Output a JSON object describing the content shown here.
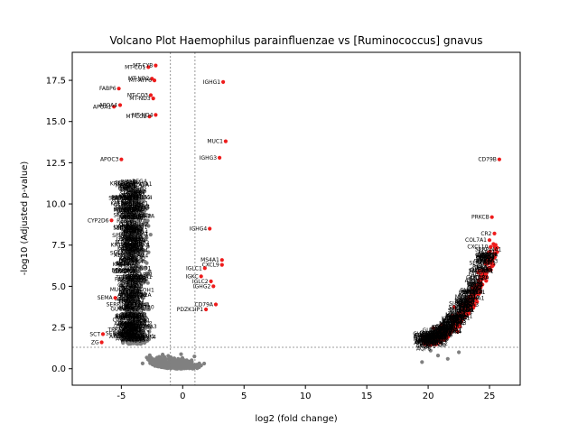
{
  "chart_data": {
    "type": "scatter",
    "title": "Volcano Plot Haemophilus parainfluenzae vs [Ruminococcus] gnavus",
    "xlabel": "log2 (fold change)",
    "ylabel": "-log10 (Adjusted p-value)",
    "xlim": [
      -9,
      27.5
    ],
    "ylim": [
      -1.0,
      19.2
    ],
    "xticks": [
      -5,
      0,
      5,
      10,
      15,
      20,
      25
    ],
    "yticks": [
      0.0,
      2.5,
      5.0,
      7.5,
      10.0,
      12.5,
      15.0,
      17.5
    ],
    "ytick_labels": [
      "0.0",
      "2.5",
      "5.0",
      "7.5",
      "10.0",
      "12.5",
      "15.0",
      "17.5"
    ],
    "thresholds": {
      "fold_change": [
        -1,
        1
      ],
      "p_value": 1.3
    },
    "colors": {
      "significant": "#ee1c1c",
      "not_significant": "#808080",
      "threshold_line": "#7f7f7f"
    },
    "labeled_points": [
      {
        "label": "MT-CO1",
        "x": -2.8,
        "y": 18.3
      },
      {
        "label": "MT-CYB",
        "x": -2.2,
        "y": 18.4
      },
      {
        "label": "MT-ND2",
        "x": -2.5,
        "y": 17.6
      },
      {
        "label": "MT-ATP6",
        "x": -2.3,
        "y": 17.5
      },
      {
        "label": "FABP6",
        "x": -5.2,
        "y": 17.0
      },
      {
        "label": "MT-CO3",
        "x": -2.6,
        "y": 16.6
      },
      {
        "label": "MT-ND3",
        "x": -2.4,
        "y": 16.4
      },
      {
        "label": "APOA1",
        "x": -5.6,
        "y": 15.9
      },
      {
        "label": "APOA4",
        "x": -5.1,
        "y": 16.0
      },
      {
        "label": "MT-CO2",
        "x": -2.7,
        "y": 15.3
      },
      {
        "label": "MT-ND4",
        "x": -2.2,
        "y": 15.4
      },
      {
        "label": "IGHG1",
        "x": 3.3,
        "y": 17.4
      },
      {
        "label": "MUC1",
        "x": 3.5,
        "y": 13.8
      },
      {
        "label": "IGHG3",
        "x": 3.0,
        "y": 12.8
      },
      {
        "label": "CD79B",
        "x": 25.8,
        "y": 12.7
      },
      {
        "label": "APOC3",
        "x": -5.0,
        "y": 12.7
      },
      {
        "label": "IGHG4",
        "x": 2.2,
        "y": 8.5
      },
      {
        "label": "CYP2D6",
        "x": -5.8,
        "y": 9.0
      },
      {
        "label": "PRKCB",
        "x": 25.2,
        "y": 9.2
      },
      {
        "label": "CR2",
        "x": 25.4,
        "y": 8.2
      },
      {
        "label": "COL7A1",
        "x": 25.0,
        "y": 7.8
      },
      {
        "label": "CXCL10",
        "x": 25.1,
        "y": 7.4
      },
      {
        "label": "MS4A1",
        "x": 3.2,
        "y": 6.6
      },
      {
        "label": "CXCL9",
        "x": 3.2,
        "y": 6.3
      },
      {
        "label": "IGLC1",
        "x": 1.8,
        "y": 6.1
      },
      {
        "label": "IGKC",
        "x": 1.5,
        "y": 5.6
      },
      {
        "label": "IGLC2",
        "x": 2.3,
        "y": 5.3
      },
      {
        "label": "IGHG2",
        "x": 2.5,
        "y": 5.0
      },
      {
        "label": "CD79A",
        "x": 2.7,
        "y": 3.9
      },
      {
        "label": "PDZK1IP1",
        "x": 1.9,
        "y": 3.6
      },
      {
        "label": "SEMA",
        "x": -5.5,
        "y": 4.3
      },
      {
        "label": "SCT",
        "x": -6.5,
        "y": 2.1
      },
      {
        "label": "ZG",
        "x": -6.6,
        "y": 1.6
      }
    ]
  }
}
